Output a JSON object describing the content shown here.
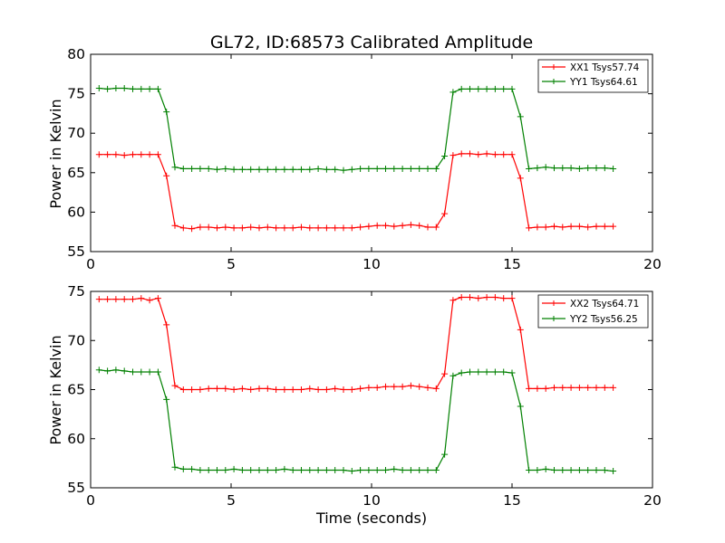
{
  "chart_data": [
    {
      "type": "line",
      "title": "GL72, ID:68573 Calibrated Amplitude",
      "xlabel": "",
      "ylabel": "Power in Kelvin",
      "xlim": [
        0,
        20
      ],
      "ylim": [
        55,
        80
      ],
      "xticks": [
        0,
        5,
        10,
        15,
        20
      ],
      "yticks": [
        55,
        60,
        65,
        70,
        75,
        80
      ],
      "grid": false,
      "legend": "top-right",
      "x": [
        0.3,
        0.6,
        0.9,
        1.2,
        1.5,
        1.8,
        2.1,
        2.4,
        2.7,
        3.0,
        3.3,
        3.6,
        3.9,
        4.2,
        4.5,
        4.8,
        5.1,
        5.4,
        5.7,
        6.0,
        6.3,
        6.6,
        6.9,
        7.2,
        7.5,
        7.8,
        8.1,
        8.4,
        8.7,
        9.0,
        9.3,
        9.6,
        9.9,
        10.2,
        10.5,
        10.8,
        11.1,
        11.4,
        11.7,
        12.0,
        12.3,
        12.6,
        12.9,
        13.2,
        13.5,
        13.8,
        14.1,
        14.4,
        14.7,
        15.0,
        15.3,
        15.6,
        15.9,
        16.2,
        16.5,
        16.8,
        17.1,
        17.4,
        17.7,
        18.0,
        18.3,
        18.6
      ],
      "series": [
        {
          "name": "XX1 Tsys57.74",
          "color": "#ff0000",
          "values": [
            67.3,
            67.3,
            67.3,
            67.2,
            67.3,
            67.3,
            67.3,
            67.3,
            64.6,
            58.3,
            58.0,
            57.9,
            58.1,
            58.1,
            58.0,
            58.1,
            58.0,
            58.0,
            58.1,
            58.0,
            58.1,
            58.0,
            58.0,
            58.0,
            58.1,
            58.0,
            58.0,
            58.0,
            58.0,
            58.0,
            58.0,
            58.1,
            58.2,
            58.3,
            58.3,
            58.2,
            58.3,
            58.4,
            58.3,
            58.1,
            58.1,
            59.8,
            67.2,
            67.4,
            67.4,
            67.3,
            67.4,
            67.3,
            67.3,
            67.3,
            64.3,
            58.0,
            58.1,
            58.1,
            58.2,
            58.1,
            58.2,
            58.2,
            58.1,
            58.2,
            58.2,
            58.2
          ]
        },
        {
          "name": "YY1 Tsys64.61",
          "color": "#008000",
          "values": [
            75.7,
            75.6,
            75.7,
            75.7,
            75.6,
            75.6,
            75.6,
            75.6,
            72.7,
            65.7,
            65.5,
            65.5,
            65.5,
            65.5,
            65.4,
            65.5,
            65.4,
            65.4,
            65.4,
            65.4,
            65.4,
            65.4,
            65.4,
            65.4,
            65.4,
            65.4,
            65.5,
            65.4,
            65.4,
            65.3,
            65.4,
            65.5,
            65.5,
            65.5,
            65.5,
            65.5,
            65.5,
            65.5,
            65.5,
            65.5,
            65.5,
            67.1,
            75.2,
            75.6,
            75.6,
            75.6,
            75.6,
            75.6,
            75.6,
            75.6,
            72.1,
            65.5,
            65.6,
            65.7,
            65.6,
            65.6,
            65.6,
            65.5,
            65.6,
            65.6,
            65.6,
            65.5
          ]
        }
      ]
    },
    {
      "type": "line",
      "title": "",
      "xlabel": "Time (seconds)",
      "ylabel": "Power in Kelvin",
      "xlim": [
        0,
        20
      ],
      "ylim": [
        55,
        75
      ],
      "xticks": [
        0,
        5,
        10,
        15,
        20
      ],
      "yticks": [
        55,
        60,
        65,
        70,
        75
      ],
      "grid": false,
      "legend": "top-right",
      "x": [
        0.3,
        0.6,
        0.9,
        1.2,
        1.5,
        1.8,
        2.1,
        2.4,
        2.7,
        3.0,
        3.3,
        3.6,
        3.9,
        4.2,
        4.5,
        4.8,
        5.1,
        5.4,
        5.7,
        6.0,
        6.3,
        6.6,
        6.9,
        7.2,
        7.5,
        7.8,
        8.1,
        8.4,
        8.7,
        9.0,
        9.3,
        9.6,
        9.9,
        10.2,
        10.5,
        10.8,
        11.1,
        11.4,
        11.7,
        12.0,
        12.3,
        12.6,
        12.9,
        13.2,
        13.5,
        13.8,
        14.1,
        14.4,
        14.7,
        15.0,
        15.3,
        15.6,
        15.9,
        16.2,
        16.5,
        16.8,
        17.1,
        17.4,
        17.7,
        18.0,
        18.3,
        18.6
      ],
      "series": [
        {
          "name": "XX2 Tsys64.71",
          "color": "#ff0000",
          "values": [
            74.2,
            74.2,
            74.2,
            74.2,
            74.2,
            74.3,
            74.1,
            74.3,
            71.6,
            65.4,
            65.0,
            65.0,
            65.0,
            65.1,
            65.1,
            65.1,
            65.0,
            65.1,
            65.0,
            65.1,
            65.1,
            65.0,
            65.0,
            65.0,
            65.0,
            65.1,
            65.0,
            65.0,
            65.1,
            65.0,
            65.0,
            65.1,
            65.2,
            65.2,
            65.3,
            65.3,
            65.3,
            65.4,
            65.3,
            65.2,
            65.1,
            66.6,
            74.1,
            74.4,
            74.4,
            74.3,
            74.4,
            74.4,
            74.3,
            74.3,
            71.1,
            65.1,
            65.1,
            65.1,
            65.2,
            65.2,
            65.2,
            65.2,
            65.2,
            65.2,
            65.2,
            65.2
          ]
        },
        {
          "name": "YY2 Tsys56.25",
          "color": "#008000",
          "values": [
            67.0,
            66.9,
            67.0,
            66.9,
            66.8,
            66.8,
            66.8,
            66.8,
            64.0,
            57.1,
            56.9,
            56.9,
            56.8,
            56.8,
            56.8,
            56.8,
            56.9,
            56.8,
            56.8,
            56.8,
            56.8,
            56.8,
            56.9,
            56.8,
            56.8,
            56.8,
            56.8,
            56.8,
            56.8,
            56.8,
            56.7,
            56.8,
            56.8,
            56.8,
            56.8,
            56.9,
            56.8,
            56.8,
            56.8,
            56.8,
            56.8,
            58.4,
            66.4,
            66.7,
            66.8,
            66.8,
            66.8,
            66.8,
            66.8,
            66.7,
            63.3,
            56.8,
            56.8,
            56.9,
            56.8,
            56.8,
            56.8,
            56.8,
            56.8,
            56.8,
            56.8,
            56.7
          ]
        }
      ]
    }
  ]
}
